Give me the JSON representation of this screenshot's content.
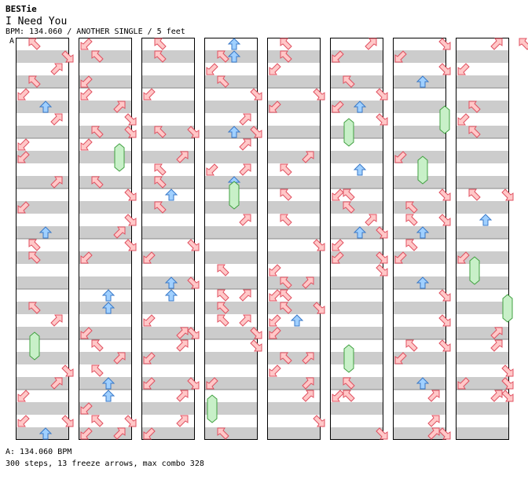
{
  "header": {
    "artist": "BESTie",
    "title": "I Need You",
    "meta": "BPM: 134.060 / ANOTHER SINGLE / 5 feet"
  },
  "chart_marker": "A",
  "footer": {
    "bpm_line": "A: 134.060 BPM",
    "stats_line": "300 steps, 13 freeze arrows, max combo 328"
  },
  "colors": {
    "lane_stripe": "#cccccc",
    "lane_bg": "#ffffff",
    "column_border": "#000000",
    "diagonal_arrow_fill": "#ffc8c8",
    "diagonal_arrow_stroke": "#e05060",
    "cardinal_arrow_fill": "#a0d0ff",
    "cardinal_arrow_stroke": "#3878c8",
    "freeze_fill": "#c8f0c8",
    "freeze_stroke": "#40a040"
  },
  "chart_data": {
    "type": "step-chart",
    "style": "5-panel (pump)",
    "panels": [
      "down-left",
      "up-left",
      "center",
      "up-right",
      "down-right"
    ],
    "columns": 8,
    "measures_per_column": 8,
    "steps": 300,
    "freeze_arrows": 13,
    "max_combo": 328,
    "bpm": 134.06,
    "difficulty": "ANOTHER",
    "mode": "SINGLE",
    "feet": 5
  }
}
